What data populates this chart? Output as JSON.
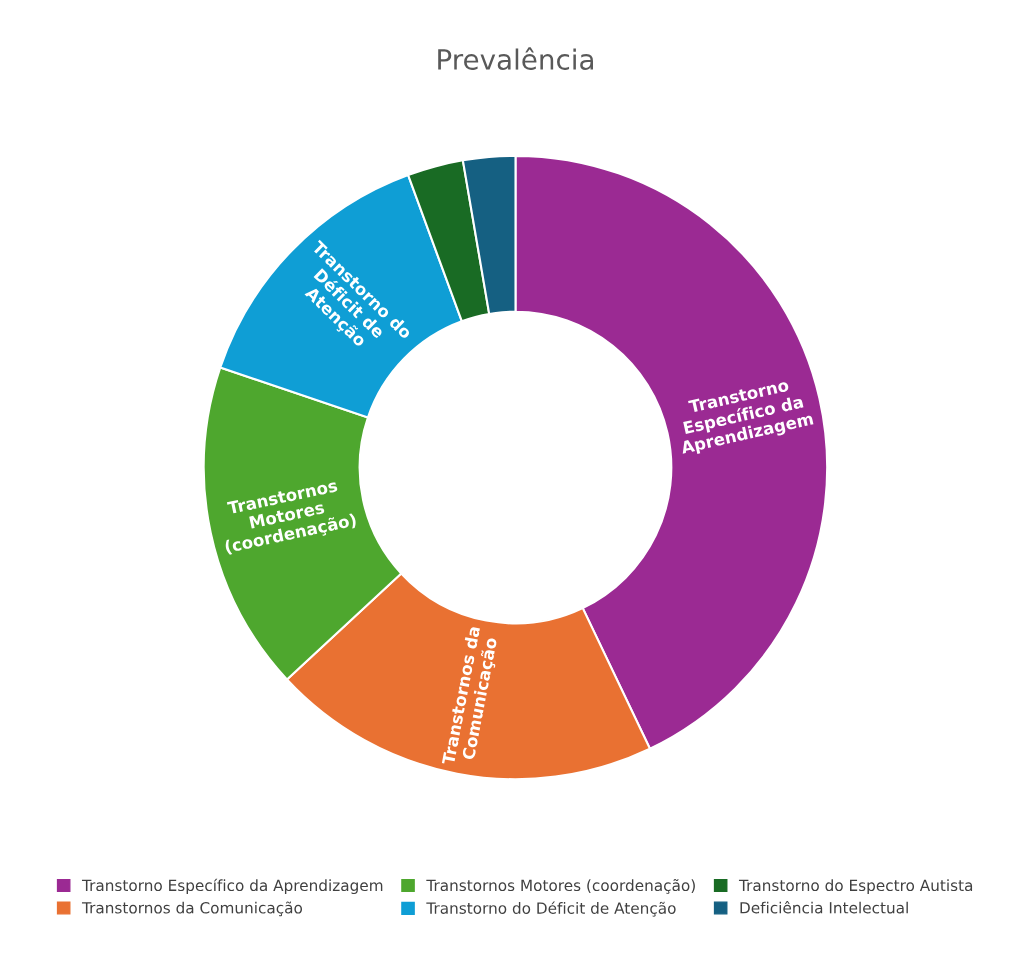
{
  "chart_data": {
    "type": "donut",
    "title": "Prevalência",
    "categories": [
      "Transtorno Específico da Aprendizagem",
      "Transtornos da Comunicação",
      "Transtornos Motores (coordenação)",
      "Transtorno do Déficit de Atenção",
      "Transtorno do Espectro Autista",
      "Deficiência Intelectual"
    ],
    "values": [
      42.9,
      20.2,
      17.1,
      14.2,
      2.9,
      2.7
    ],
    "colors": [
      "#9b2a93",
      "#e97132",
      "#4ea72e",
      "#0f9ed5",
      "#196b24",
      "#156082"
    ],
    "value_labels": [
      "Transtorno\nEspecífico da\nAprendizagem",
      "Transtornos da\nComunicação",
      "Transtornos\nMotores\n(coordenação)",
      "Transtorno do\nDéficit de\nAtenção",
      null,
      null
    ],
    "legend": "bottom"
  }
}
